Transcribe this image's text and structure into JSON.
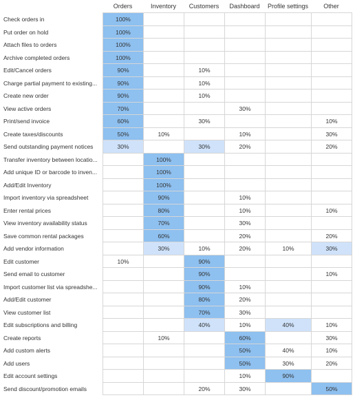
{
  "columns": [
    "Orders",
    "Inventory",
    "Customers",
    "Dashboard",
    "Profile settings",
    "Other"
  ],
  "rows": [
    {
      "label": "Check orders in",
      "cells": [
        "100%",
        "",
        "",
        "",
        "",
        ""
      ],
      "shade": [
        "hi",
        "",
        "",
        "",
        "",
        ""
      ]
    },
    {
      "label": "Put order on hold",
      "cells": [
        "100%",
        "",
        "",
        "",
        "",
        ""
      ],
      "shade": [
        "hi",
        "",
        "",
        "",
        "",
        ""
      ]
    },
    {
      "label": "Attach files to orders",
      "cells": [
        "100%",
        "",
        "",
        "",
        "",
        ""
      ],
      "shade": [
        "hi",
        "",
        "",
        "",
        "",
        ""
      ]
    },
    {
      "label": "Archive completed orders",
      "cells": [
        "100%",
        "",
        "",
        "",
        "",
        ""
      ],
      "shade": [
        "hi",
        "",
        "",
        "",
        "",
        ""
      ]
    },
    {
      "label": "Edit/Cancel orders",
      "cells": [
        "90%",
        "",
        "10%",
        "",
        "",
        ""
      ],
      "shade": [
        "hi",
        "",
        "",
        "",
        "",
        ""
      ]
    },
    {
      "label": "Charge partial payment to existing...",
      "cells": [
        "90%",
        "",
        "10%",
        "",
        "",
        ""
      ],
      "shade": [
        "hi",
        "",
        "",
        "",
        "",
        ""
      ]
    },
    {
      "label": "Create new order",
      "cells": [
        "90%",
        "",
        "10%",
        "",
        "",
        ""
      ],
      "shade": [
        "hi",
        "",
        "",
        "",
        "",
        ""
      ]
    },
    {
      "label": "View active orders",
      "cells": [
        "70%",
        "",
        "",
        "30%",
        "",
        ""
      ],
      "shade": [
        "hi",
        "",
        "",
        "",
        "",
        ""
      ]
    },
    {
      "label": "Print/send invoice",
      "cells": [
        "60%",
        "",
        "30%",
        "",
        "",
        "10%"
      ],
      "shade": [
        "hi",
        "",
        "",
        "",
        "",
        ""
      ]
    },
    {
      "label": "Create taxes/discounts",
      "cells": [
        "50%",
        "10%",
        "",
        "10%",
        "",
        "30%"
      ],
      "shade": [
        "hi",
        "",
        "",
        "",
        "",
        ""
      ]
    },
    {
      "label": "Send outstanding payment notices",
      "cells": [
        "30%",
        "",
        "30%",
        "20%",
        "",
        "20%"
      ],
      "shade": [
        "lo",
        "",
        "lo",
        "",
        "",
        ""
      ]
    },
    {
      "label": "Transfer inventory between locatio...",
      "cells": [
        "",
        "100%",
        "",
        "",
        "",
        ""
      ],
      "shade": [
        "",
        "hi",
        "",
        "",
        "",
        ""
      ]
    },
    {
      "label": "Add unique ID or barcode to inven...",
      "cells": [
        "",
        "100%",
        "",
        "",
        "",
        ""
      ],
      "shade": [
        "",
        "hi",
        "",
        "",
        "",
        ""
      ]
    },
    {
      "label": "Add/Edit Inventory",
      "cells": [
        "",
        "100%",
        "",
        "",
        "",
        ""
      ],
      "shade": [
        "",
        "hi",
        "",
        "",
        "",
        ""
      ]
    },
    {
      "label": "Import inventory via spreadsheet",
      "cells": [
        "",
        "90%",
        "",
        "10%",
        "",
        ""
      ],
      "shade": [
        "",
        "hi",
        "",
        "",
        "",
        ""
      ]
    },
    {
      "label": "Enter rental prices",
      "cells": [
        "",
        "80%",
        "",
        "10%",
        "",
        "10%"
      ],
      "shade": [
        "",
        "hi",
        "",
        "",
        "",
        ""
      ]
    },
    {
      "label": "View inventory availability status",
      "cells": [
        "",
        "70%",
        "",
        "30%",
        "",
        ""
      ],
      "shade": [
        "",
        "hi",
        "",
        "",
        "",
        ""
      ]
    },
    {
      "label": "Save common rental packages",
      "cells": [
        "",
        "60%",
        "",
        "20%",
        "",
        "20%"
      ],
      "shade": [
        "",
        "hi",
        "",
        "",
        "",
        ""
      ]
    },
    {
      "label": "Add vendor information",
      "cells": [
        "",
        "30%",
        "10%",
        "20%",
        "10%",
        "30%"
      ],
      "shade": [
        "",
        "lo",
        "",
        "",
        "",
        "lo"
      ]
    },
    {
      "label": "Edit customer",
      "cells": [
        "10%",
        "",
        "90%",
        "",
        "",
        ""
      ],
      "shade": [
        "",
        "",
        "hi",
        "",
        "",
        ""
      ]
    },
    {
      "label": "Send email to customer",
      "cells": [
        "",
        "",
        "90%",
        "",
        "",
        "10%"
      ],
      "shade": [
        "",
        "",
        "hi",
        "",
        "",
        ""
      ]
    },
    {
      "label": "Import customer list via spreadshe...",
      "cells": [
        "",
        "",
        "90%",
        "10%",
        "",
        ""
      ],
      "shade": [
        "",
        "",
        "hi",
        "",
        "",
        ""
      ]
    },
    {
      "label": "Add/Edit customer",
      "cells": [
        "",
        "",
        "80%",
        "20%",
        "",
        ""
      ],
      "shade": [
        "",
        "",
        "hi",
        "",
        "",
        ""
      ]
    },
    {
      "label": "View customer list",
      "cells": [
        "",
        "",
        "70%",
        "30%",
        "",
        ""
      ],
      "shade": [
        "",
        "",
        "hi",
        "",
        "",
        ""
      ]
    },
    {
      "label": "Edit subscriptions and billing",
      "cells": [
        "",
        "",
        "40%",
        "10%",
        "40%",
        "10%"
      ],
      "shade": [
        "",
        "",
        "lo",
        "",
        "lo",
        ""
      ]
    },
    {
      "label": "Create reports",
      "cells": [
        "",
        "10%",
        "",
        "60%",
        "",
        "30%"
      ],
      "shade": [
        "",
        "",
        "",
        "hi",
        "",
        ""
      ]
    },
    {
      "label": "Add custom alerts",
      "cells": [
        "",
        "",
        "",
        "50%",
        "40%",
        "10%"
      ],
      "shade": [
        "",
        "",
        "",
        "hi",
        "",
        ""
      ]
    },
    {
      "label": "Add users",
      "cells": [
        "",
        "",
        "",
        "50%",
        "30%",
        "20%"
      ],
      "shade": [
        "",
        "",
        "",
        "hi",
        "",
        ""
      ]
    },
    {
      "label": "Edit account settings",
      "cells": [
        "",
        "",
        "",
        "10%",
        "90%",
        ""
      ],
      "shade": [
        "",
        "",
        "",
        "",
        "hi",
        ""
      ]
    },
    {
      "label": "Send discount/promotion emails",
      "cells": [
        "",
        "",
        "20%",
        "30%",
        "",
        "50%"
      ],
      "shade": [
        "",
        "",
        "",
        "",
        "",
        "hi"
      ]
    }
  ],
  "colors": {
    "primary_highlight": "#8ec0f0",
    "secondary_highlight": "#cfe2fa",
    "grid_line": "#d6d6d6",
    "text": "#333333"
  }
}
